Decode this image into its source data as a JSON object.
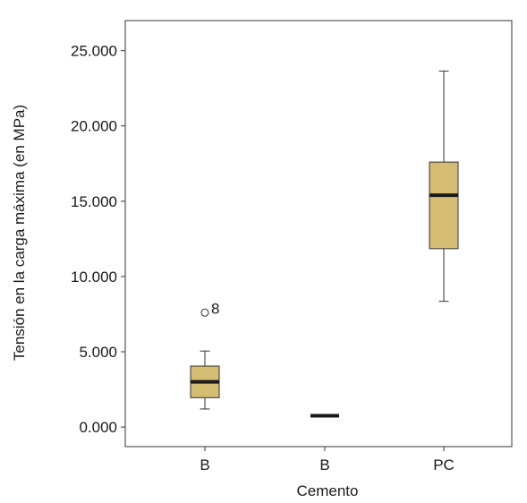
{
  "chart_data": {
    "type": "boxplot",
    "xlabel": "Cemento",
    "ylabel": "Tensión en la carga máxima (en MPa)",
    "ylim": [
      -1.3,
      27.0
    ],
    "yticks": [
      0,
      5,
      10,
      15,
      20,
      25
    ],
    "ytick_labels": [
      "0.000",
      "5.000",
      "10.000",
      "15.000",
      "20.000",
      "25.000"
    ],
    "grid": false,
    "colors": {
      "box_fill": "#d4bd72",
      "box_stroke": "#333333",
      "median": "#1a1a1a",
      "axis": "#333333"
    },
    "categories": [
      "B",
      "B",
      "PC"
    ],
    "boxes": [
      {
        "category": "B",
        "whisker_low": 1.2,
        "q1": 1.95,
        "median": 3.0,
        "q3": 4.05,
        "whisker_high": 5.05,
        "outliers": [
          {
            "value": 7.6,
            "label": "8"
          }
        ]
      },
      {
        "category": "B",
        "whisker_low": 0.75,
        "q1": 0.75,
        "median": 0.75,
        "q3": 0.75,
        "whisker_high": 0.75,
        "outliers": []
      },
      {
        "category": "PC",
        "whisker_low": 8.35,
        "q1": 11.85,
        "median": 15.4,
        "q3": 17.6,
        "whisker_high": 23.65,
        "outliers": []
      }
    ]
  }
}
